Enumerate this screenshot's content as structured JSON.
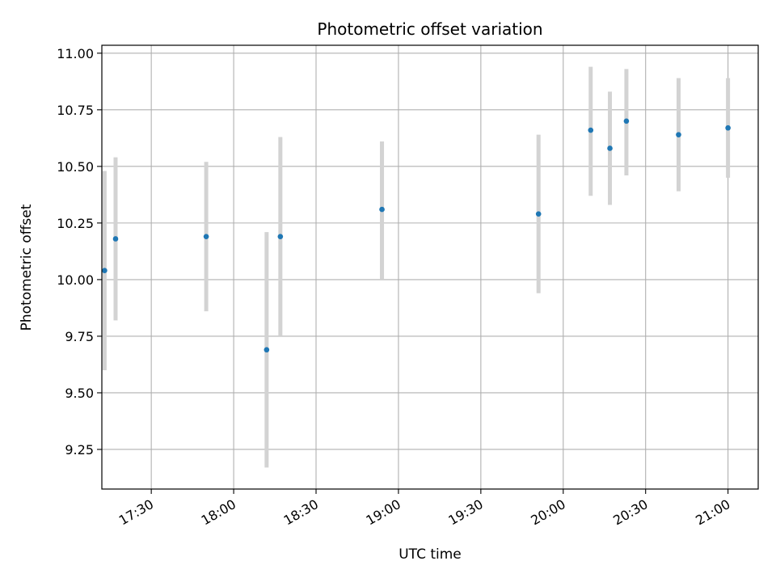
{
  "chart_data": {
    "type": "scatter",
    "title": "Photometric offset variation",
    "xlabel": "UTC time",
    "ylabel": "Photometric offset",
    "xlim": [
      "17:12",
      "21:11"
    ],
    "ylim": [
      9.075,
      11.035
    ],
    "grid": true,
    "x_ticks": [
      "17:30",
      "18:00",
      "18:30",
      "19:00",
      "19:30",
      "20:00",
      "20:30",
      "21:00"
    ],
    "y_ticks": [
      "9.25",
      "9.50",
      "9.75",
      "10.00",
      "10.25",
      "10.50",
      "10.75",
      "11.00"
    ],
    "colors": {
      "marker": "#1f77b4",
      "errorbar": "#d3d3d3",
      "grid": "#b0b0b0"
    },
    "series": [
      {
        "points": [
          {
            "x": "17:13",
            "y": 10.04,
            "ymin": 9.6,
            "ymax": 10.48
          },
          {
            "x": "17:17",
            "y": 10.18,
            "ymin": 9.82,
            "ymax": 10.54
          },
          {
            "x": "17:50",
            "y": 10.19,
            "ymin": 9.86,
            "ymax": 10.52
          },
          {
            "x": "18:12",
            "y": 9.69,
            "ymin": 9.17,
            "ymax": 10.21
          },
          {
            "x": "18:17",
            "y": 10.19,
            "ymin": 9.75,
            "ymax": 10.63
          },
          {
            "x": "18:54",
            "y": 10.31,
            "ymin": 10.0,
            "ymax": 10.61
          },
          {
            "x": "19:51",
            "y": 10.29,
            "ymin": 9.94,
            "ymax": 10.64
          },
          {
            "x": "20:10",
            "y": 10.66,
            "ymin": 10.37,
            "ymax": 10.94
          },
          {
            "x": "20:17",
            "y": 10.58,
            "ymin": 10.33,
            "ymax": 10.83
          },
          {
            "x": "20:23",
            "y": 10.7,
            "ymin": 10.46,
            "ymax": 10.93
          },
          {
            "x": "20:42",
            "y": 10.64,
            "ymin": 10.39,
            "ymax": 10.89
          },
          {
            "x": "21:00",
            "y": 10.67,
            "ymin": 10.45,
            "ymax": 10.89
          }
        ]
      }
    ]
  }
}
